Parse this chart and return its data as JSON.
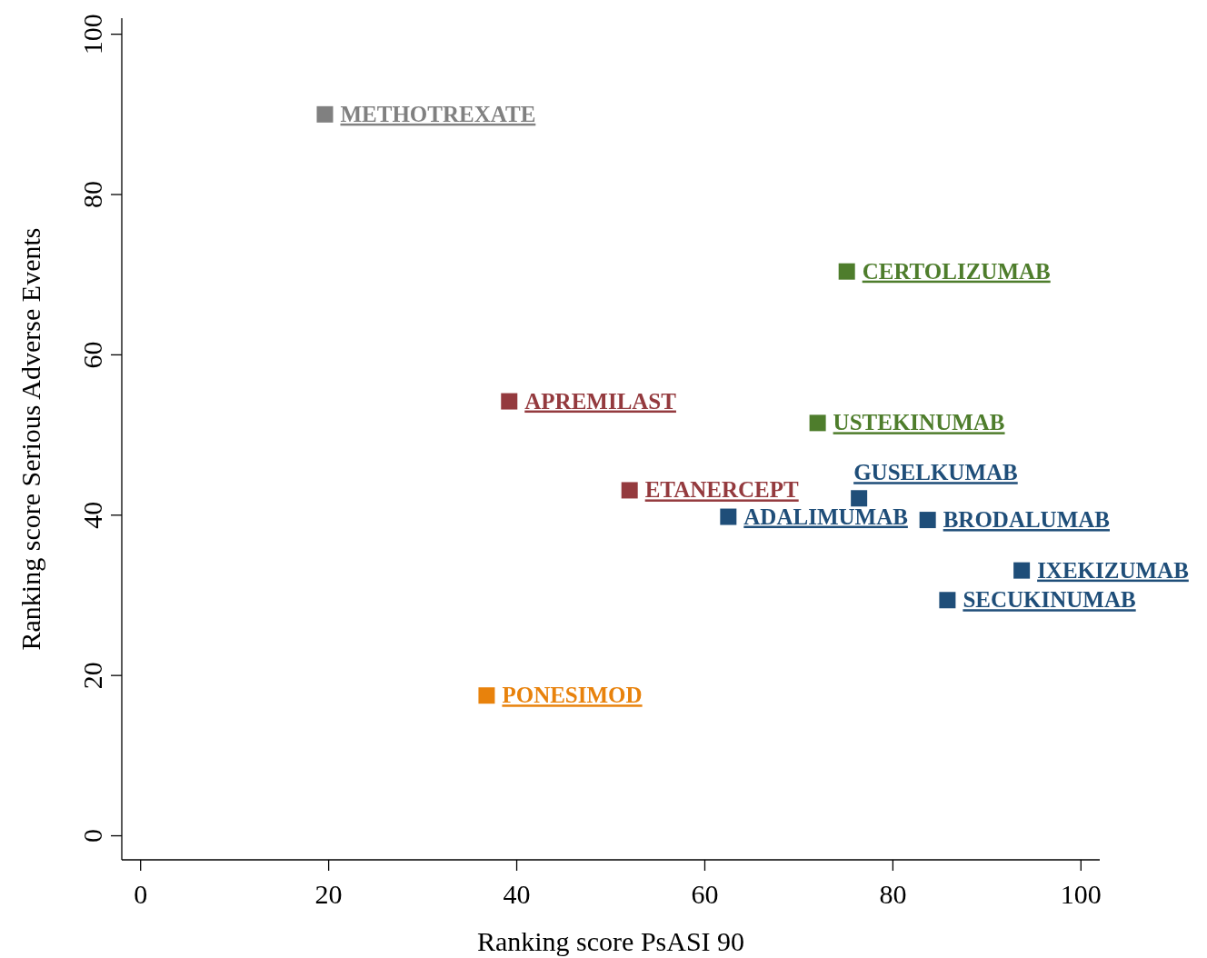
{
  "chart_data": {
    "type": "scatter",
    "xlabel": "Ranking score PsASI 90",
    "ylabel": "Ranking score Serious Adverse Events",
    "xlim": [
      -2,
      102
    ],
    "ylim": [
      -3,
      102
    ],
    "xticks": [
      0,
      20,
      40,
      60,
      80,
      100
    ],
    "yticks": [
      0,
      20,
      40,
      60,
      80,
      100
    ],
    "grid": false,
    "marker": "square",
    "series": [
      {
        "name": "METHOTREXATE",
        "color": "#808080",
        "x": [
          19.6
        ],
        "values": [
          90.0
        ]
      },
      {
        "name": "CERTOLIZUMAB",
        "color": "#4e7d2c",
        "x": [
          75.1
        ],
        "values": [
          70.4
        ]
      },
      {
        "name": "APREMILAST",
        "color": "#943a3e",
        "x": [
          39.2
        ],
        "values": [
          54.2
        ]
      },
      {
        "name": "USTEKINUMAB",
        "color": "#4e7d2c",
        "x": [
          72.0
        ],
        "values": [
          51.5
        ]
      },
      {
        "name": "ETANERCEPT",
        "color": "#943a3e",
        "x": [
          52.0
        ],
        "values": [
          43.1
        ]
      },
      {
        "name": "GUSELKUMAB",
        "color": "#1f4e79",
        "x": [
          76.4
        ],
        "values": [
          42.1
        ]
      },
      {
        "name": "ADALIMUMAB",
        "color": "#1f4e79",
        "x": [
          62.5
        ],
        "values": [
          39.8
        ]
      },
      {
        "name": "BRODALUMAB",
        "color": "#1f4e79",
        "x": [
          83.7
        ],
        "values": [
          39.4
        ]
      },
      {
        "name": "IXEKIZUMAB",
        "color": "#1f4e79",
        "x": [
          93.7
        ],
        "values": [
          33.1
        ]
      },
      {
        "name": "SECUKINUMAB",
        "color": "#1f4e79",
        "x": [
          85.8
        ],
        "values": [
          29.4
        ]
      },
      {
        "name": "PONESIMOD",
        "color": "#e8820c",
        "x": [
          36.8
        ],
        "values": [
          17.5
        ]
      }
    ]
  }
}
